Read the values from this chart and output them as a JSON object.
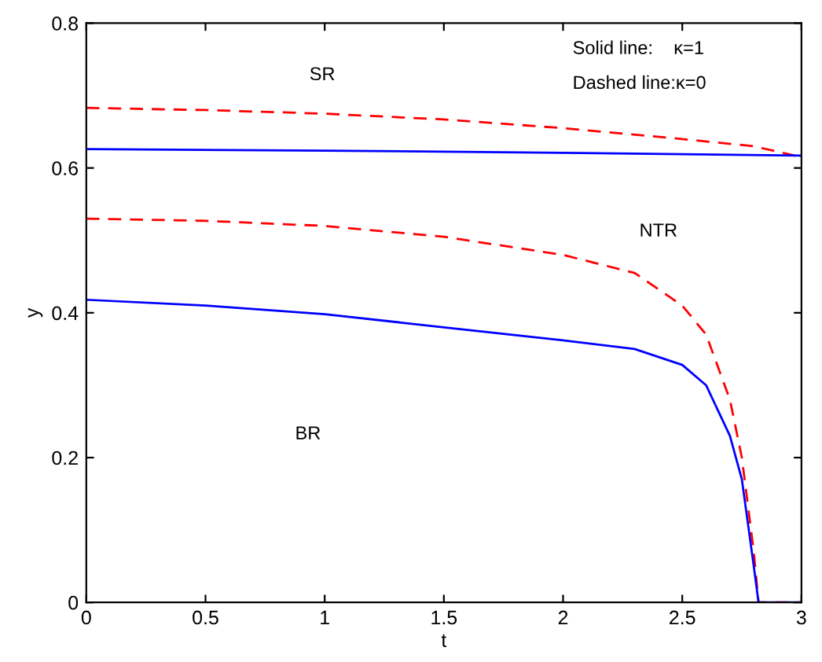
{
  "chart_data": {
    "type": "line",
    "xlabel": "t",
    "ylabel": "y",
    "xlim": [
      0,
      3
    ],
    "ylim": [
      0,
      0.8
    ],
    "xticks": [
      0,
      0.5,
      1,
      1.5,
      2,
      2.5,
      3
    ],
    "yticks": [
      0,
      0.2,
      0.4,
      0.6,
      0.8
    ],
    "grid": false,
    "legend": false,
    "series": [
      {
        "color": "#ff0000",
        "line_style": "dashed",
        "x": [
          0,
          0.5,
          1,
          1.5,
          2,
          2.5,
          2.8,
          3
        ],
        "values": [
          0.683,
          0.68,
          0.675,
          0.667,
          0.655,
          0.64,
          0.63,
          0.615
        ]
      },
      {
        "color": "#0000ff",
        "line_style": "solid",
        "x": [
          0,
          1,
          2,
          3
        ],
        "values": [
          0.626,
          0.624,
          0.621,
          0.617
        ]
      },
      {
        "color": "#ff0000",
        "line_style": "dashed",
        "x": [
          0,
          0.5,
          1,
          1.5,
          2,
          2.3,
          2.5,
          2.6,
          2.7,
          2.75,
          2.8,
          2.82,
          3
        ],
        "values": [
          0.53,
          0.527,
          0.52,
          0.505,
          0.48,
          0.455,
          0.41,
          0.37,
          0.28,
          0.2,
          0.07,
          0,
          0
        ]
      },
      {
        "color": "#0000ff",
        "line_style": "solid",
        "x": [
          0,
          0.5,
          1,
          1.5,
          2,
          2.3,
          2.5,
          2.6,
          2.7,
          2.75,
          2.8,
          2.82,
          3
        ],
        "values": [
          0.418,
          0.41,
          0.398,
          0.38,
          0.362,
          0.35,
          0.328,
          0.3,
          0.23,
          0.17,
          0.05,
          0,
          0
        ]
      }
    ],
    "annotations": [
      "SR",
      "NTR",
      "BR",
      "Solid line:    κ=1",
      "Dashed line:κ=0"
    ]
  }
}
